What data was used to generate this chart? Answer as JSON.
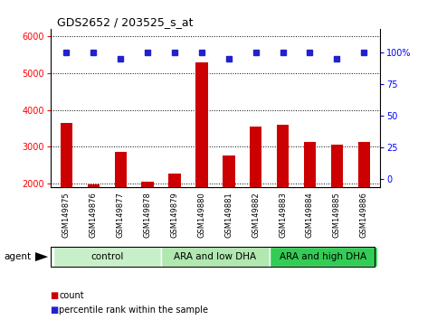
{
  "title": "GDS2652 / 203525_s_at",
  "samples": [
    "GSM149875",
    "GSM149876",
    "GSM149877",
    "GSM149878",
    "GSM149879",
    "GSM149880",
    "GSM149881",
    "GSM149882",
    "GSM149883",
    "GSM149884",
    "GSM149885",
    "GSM149886"
  ],
  "counts": [
    3650,
    1980,
    2870,
    2050,
    2280,
    5300,
    2750,
    3540,
    3590,
    3140,
    3050,
    3120
  ],
  "percentiles": [
    100,
    100,
    95,
    100,
    100,
    100,
    95,
    100,
    100,
    100,
    95,
    100
  ],
  "bar_color": "#cc0000",
  "dot_color": "#2222cc",
  "ylim_left": [
    1900,
    6200
  ],
  "ylim_right": [
    -6.25,
    118.75
  ],
  "yticks_left": [
    2000,
    3000,
    4000,
    5000,
    6000
  ],
  "yticks_right": [
    0,
    25,
    50,
    75,
    100
  ],
  "ytick_labels_right": [
    "0",
    "25",
    "50",
    "75",
    "100%"
  ],
  "groups": [
    {
      "label": "control",
      "start": 0,
      "end": 3,
      "color": "#c8f0c8"
    },
    {
      "label": "ARA and low DHA",
      "start": 4,
      "end": 7,
      "color": "#b0e8b0"
    },
    {
      "label": "ARA and high DHA",
      "start": 8,
      "end": 11,
      "color": "#33cc55"
    }
  ],
  "agent_label": "agent",
  "legend_count_label": "count",
  "legend_percentile_label": "percentile rank within the sample",
  "dotted_line_color": "#000000",
  "bg_color": "#ffffff",
  "sample_bg_color": "#cccccc"
}
